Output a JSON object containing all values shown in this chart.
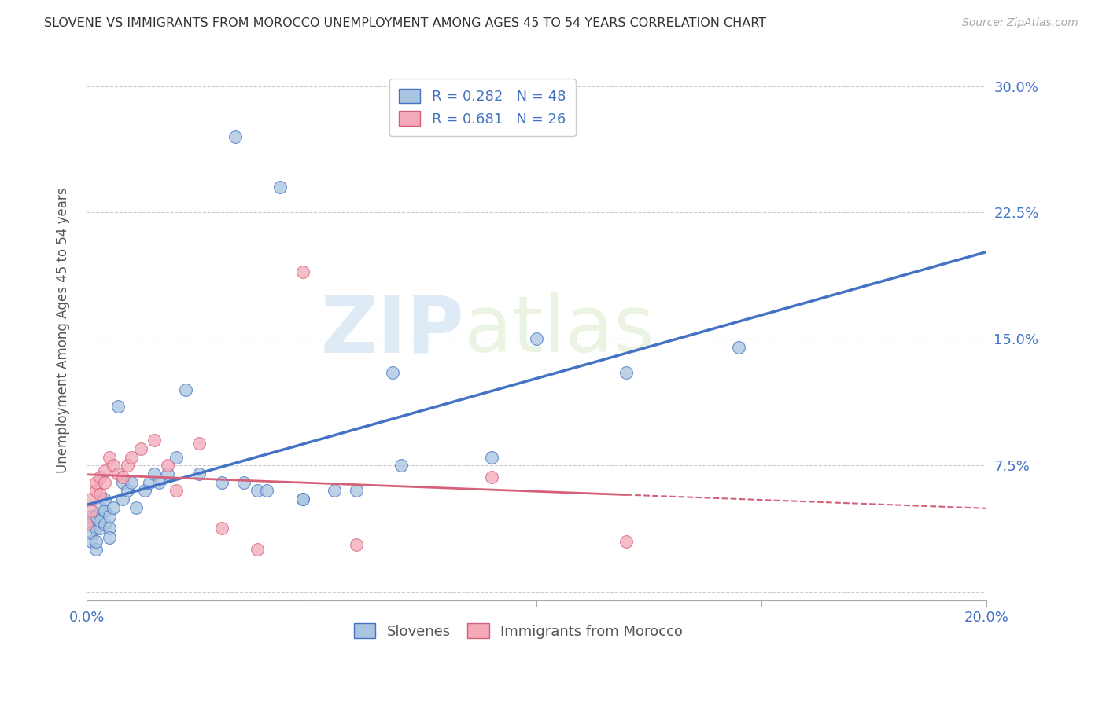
{
  "title": "SLOVENE VS IMMIGRANTS FROM MOROCCO UNEMPLOYMENT AMONG AGES 45 TO 54 YEARS CORRELATION CHART",
  "source": "Source: ZipAtlas.com",
  "ylabel": "Unemployment Among Ages 45 to 54 years",
  "xlim": [
    0.0,
    0.2
  ],
  "ylim": [
    -0.005,
    0.315
  ],
  "xticks": [
    0.0,
    0.05,
    0.1,
    0.15,
    0.2
  ],
  "xticklabels": [
    "0.0%",
    "",
    "",
    "",
    "20.0%"
  ],
  "yticks": [
    0.0,
    0.075,
    0.15,
    0.225,
    0.3
  ],
  "yticklabels": [
    "",
    "7.5%",
    "15.0%",
    "22.5%",
    "30.0%"
  ],
  "legend_labels": [
    "Slovenes",
    "Immigrants from Morocco"
  ],
  "R_slovene": 0.282,
  "N_slovene": 48,
  "R_morocco": 0.681,
  "N_morocco": 26,
  "slovene_color": "#a8c4e0",
  "morocco_color": "#f4a8b8",
  "slovene_line_color": "#4472c4",
  "morocco_line_color": "#d4607a",
  "background_color": "#ffffff",
  "watermark_zip": "ZIP",
  "watermark_atlas": "atlas",
  "slovene_x": [
    0.0,
    0.001,
    0.001,
    0.001,
    0.002,
    0.002,
    0.002,
    0.002,
    0.003,
    0.003,
    0.003,
    0.004,
    0.004,
    0.004,
    0.005,
    0.005,
    0.005,
    0.006,
    0.007,
    0.008,
    0.008,
    0.009,
    0.01,
    0.011,
    0.013,
    0.014,
    0.015,
    0.016,
    0.018,
    0.02,
    0.022,
    0.025,
    0.03,
    0.033,
    0.035,
    0.038,
    0.04,
    0.043,
    0.048,
    0.048,
    0.055,
    0.06,
    0.068,
    0.07,
    0.09,
    0.1,
    0.12,
    0.145
  ],
  "slovene_y": [
    0.04,
    0.03,
    0.035,
    0.045,
    0.025,
    0.038,
    0.045,
    0.03,
    0.038,
    0.042,
    0.05,
    0.04,
    0.048,
    0.055,
    0.038,
    0.045,
    0.032,
    0.05,
    0.11,
    0.055,
    0.065,
    0.06,
    0.065,
    0.05,
    0.06,
    0.065,
    0.07,
    0.065,
    0.07,
    0.08,
    0.12,
    0.07,
    0.065,
    0.27,
    0.065,
    0.06,
    0.06,
    0.24,
    0.055,
    0.055,
    0.06,
    0.06,
    0.13,
    0.075,
    0.08,
    0.15,
    0.13,
    0.145
  ],
  "morocco_x": [
    0.0,
    0.001,
    0.001,
    0.002,
    0.002,
    0.003,
    0.003,
    0.004,
    0.004,
    0.005,
    0.006,
    0.007,
    0.008,
    0.009,
    0.01,
    0.012,
    0.015,
    0.018,
    0.02,
    0.025,
    0.03,
    0.038,
    0.048,
    0.06,
    0.09,
    0.12
  ],
  "morocco_y": [
    0.04,
    0.048,
    0.055,
    0.06,
    0.065,
    0.058,
    0.068,
    0.072,
    0.065,
    0.08,
    0.075,
    0.07,
    0.068,
    0.075,
    0.08,
    0.085,
    0.09,
    0.075,
    0.06,
    0.088,
    0.038,
    0.025,
    0.19,
    0.028,
    0.068,
    0.03
  ]
}
